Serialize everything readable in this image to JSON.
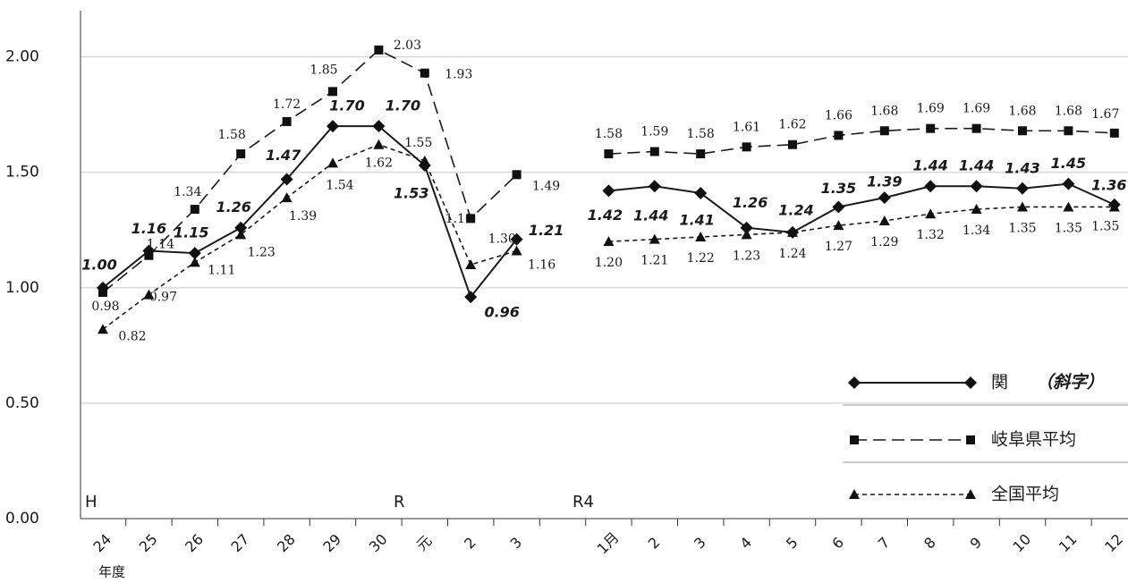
{
  "chart_data": {
    "type": "line",
    "categories": [
      "24",
      "25",
      "26",
      "27",
      "28",
      "29",
      "30",
      "元",
      "2",
      "3",
      null,
      "1月",
      "2",
      "3",
      "4",
      "5",
      "6",
      "7",
      "8",
      "9",
      "10",
      "11",
      "12"
    ],
    "x_axis_label": "年度",
    "annotations": [
      "H",
      "R",
      "R4"
    ],
    "legend_note": "（斜字）",
    "ylim": [
      0,
      2.2
    ],
    "yticks": [
      {
        "value": 0,
        "label": "0.00"
      },
      {
        "value": 0.5,
        "label": "0.50"
      },
      {
        "value": 1,
        "label": "1.00"
      },
      {
        "value": 1.5,
        "label": "1.50"
      },
      {
        "value": 2,
        "label": "2.00"
      }
    ],
    "grid": true,
    "legend": "right",
    "series": [
      {
        "name": "関",
        "color": "#1a1a1a",
        "marker": "diamond",
        "dash": "solid",
        "values": [
          1.0,
          1.16,
          1.15,
          1.26,
          1.47,
          1.7,
          1.7,
          1.53,
          0.96,
          1.21,
          null,
          1.42,
          1.44,
          1.41,
          1.26,
          1.24,
          1.35,
          1.39,
          1.44,
          1.44,
          1.43,
          1.45,
          1.36
        ],
        "value_labels": [
          "1.00",
          "1.16",
          "1.15",
          "1.26",
          "1.47",
          "1.70",
          "1.70",
          "1.53",
          "0.96",
          "1.21",
          null,
          "1.42",
          "1.44",
          "1.41",
          "1.26",
          "1.24",
          "1.35",
          "1.39",
          "1.44",
          "1.44",
          "1.43",
          "1.45",
          "1.36"
        ]
      },
      {
        "name": "岐阜県平均",
        "color": "#1a1a1a",
        "marker": "square",
        "dash": "long",
        "values": [
          0.98,
          1.14,
          1.34,
          1.58,
          1.72,
          1.85,
          2.03,
          1.93,
          1.3,
          1.49,
          null,
          1.58,
          1.59,
          1.58,
          1.61,
          1.62,
          1.66,
          1.68,
          1.69,
          1.69,
          1.68,
          1.68,
          1.67
        ],
        "value_labels": [
          "0.98",
          "1.14",
          "1.34",
          "1.58",
          "1.72",
          "1.85",
          "2.03",
          "1.93",
          "1.30",
          "1.49",
          null,
          "1.58",
          "1.59",
          "1.58",
          "1.61",
          "1.62",
          "1.66",
          "1.68",
          "1.69",
          "1.69",
          "1.68",
          "1.68",
          "1.67"
        ]
      },
      {
        "name": "全国平均",
        "color": "#1a1a1a",
        "marker": "triangle",
        "dash": "short",
        "values": [
          0.82,
          0.97,
          1.11,
          1.23,
          1.39,
          1.54,
          1.62,
          1.55,
          1.1,
          1.16,
          null,
          1.2,
          1.21,
          1.22,
          1.23,
          1.24,
          1.27,
          1.29,
          1.32,
          1.34,
          1.35,
          1.35,
          1.35
        ],
        "value_labels": [
          "0.82",
          "0.97",
          "1.11",
          "1.23",
          "1.39",
          "1.54",
          "1.62",
          "1.55",
          "1.10",
          "1.16",
          null,
          "1.20",
          "1.21",
          "1.22",
          "1.23",
          "1.24",
          "1.27",
          "1.29",
          "1.32",
          "1.34",
          "1.35",
          "1.35",
          "1.35"
        ]
      }
    ]
  }
}
